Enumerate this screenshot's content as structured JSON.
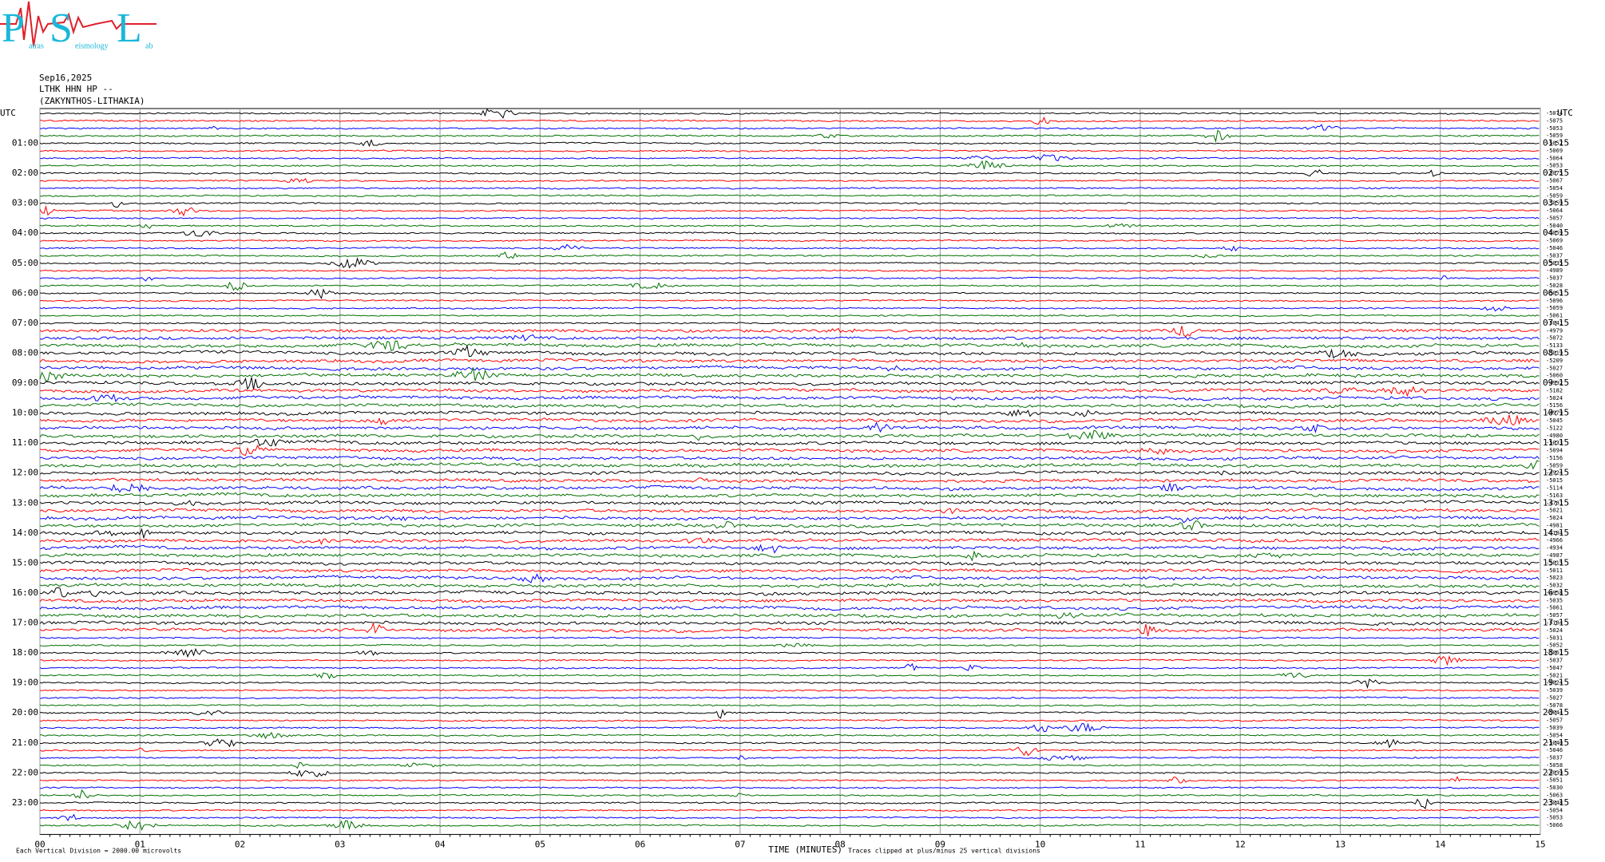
{
  "logo": {
    "letters": [
      "P",
      "S",
      "L"
    ],
    "words": [
      "atras",
      "eismology",
      "ab"
    ]
  },
  "header": {
    "date": "Sep16,2025",
    "station": "LTHK HHN HP --",
    "location": "(ZAKYNTHOS-LITHAKIA)"
  },
  "plot": {
    "type": "helicorder",
    "utc_left": "UTC",
    "utc_right": "UTC",
    "trace_colors": [
      "#000000",
      "#ff0000",
      "#0000ff",
      "#007000"
    ],
    "left_labels": [
      "01:00",
      "02:00",
      "03:00",
      "04:00",
      "05:00",
      "06:00",
      "07:00",
      "08:00",
      "09:00",
      "10:00",
      "11:00",
      "12:00",
      "13:00",
      "14:00",
      "15:00",
      "16:00",
      "17:00",
      "18:00",
      "19:00",
      "20:00",
      "21:00",
      "22:00",
      "23:00"
    ],
    "right_labels": [
      "01:15",
      "02:15",
      "03:15",
      "04:15",
      "05:15",
      "06:15",
      "07:15",
      "08:15",
      "09:15",
      "10:15",
      "11:15",
      "12:15",
      "13:15",
      "14:15",
      "15:15",
      "16:15",
      "17:15",
      "18:15",
      "19:15",
      "20:15",
      "21:15",
      "22:15",
      "23:15"
    ],
    "trace_labels": [
      -5074,
      -5075,
      -5053,
      -5059,
      -5052,
      -5069,
      -5064,
      -5053,
      -5075,
      -5067,
      -5054,
      -5059,
      -5059,
      -5064,
      -5057,
      -5040,
      -5059,
      -5069,
      -5046,
      -5037,
      -5035,
      -4989,
      -5037,
      -5028,
      -5053,
      -5096,
      -5059,
      -5061,
      -5041,
      -4979,
      -5072,
      -5133,
      -5019,
      -5209,
      -5027,
      -5060,
      -4992,
      -5182,
      -5024,
      -5156,
      -4979,
      -5045,
      -5122,
      -4980,
      -5033,
      -5094,
      -5156,
      -5059,
      -4924,
      -5015,
      -5114,
      -5163,
      -4781,
      -5021,
      -5024,
      -4981,
      -5184,
      -4966,
      -4934,
      -4987,
      -5015,
      -5011,
      -5023,
      -5032,
      -4958,
      -5035,
      -5061,
      -5057,
      -5184,
      -5024,
      -5031,
      -5052,
      -5061,
      -5037,
      -5047,
      -5021,
      -5024,
      -5039,
      -5027,
      -5078,
      -5044,
      -5057,
      -5039,
      -5054,
      -5040,
      -5046,
      -5037,
      -5058,
      -5039,
      -5051,
      -5030,
      -5063,
      -5048,
      -5054,
      -5053,
      -5066
    ],
    "xlim": [
      0,
      15
    ],
    "xticks": [
      {
        "value": 0,
        "label": "00"
      },
      {
        "value": 1,
        "label": "01"
      },
      {
        "value": 2,
        "label": "02"
      },
      {
        "value": 3,
        "label": "03"
      },
      {
        "value": 4,
        "label": "04"
      },
      {
        "value": 5,
        "label": "05"
      },
      {
        "value": 6,
        "label": "06"
      },
      {
        "value": 7,
        "label": "07"
      },
      {
        "value": 8,
        "label": "08"
      },
      {
        "value": 9,
        "label": "09"
      },
      10,
      11,
      12,
      13,
      14,
      15
    ],
    "xlabel": "TIME (MINUTES)"
  },
  "footer": {
    "scale": "Each Vertical Division = 2000.00 microvolts",
    "clip": "Traces clipped at plus/minus 25 vertical divisions"
  }
}
